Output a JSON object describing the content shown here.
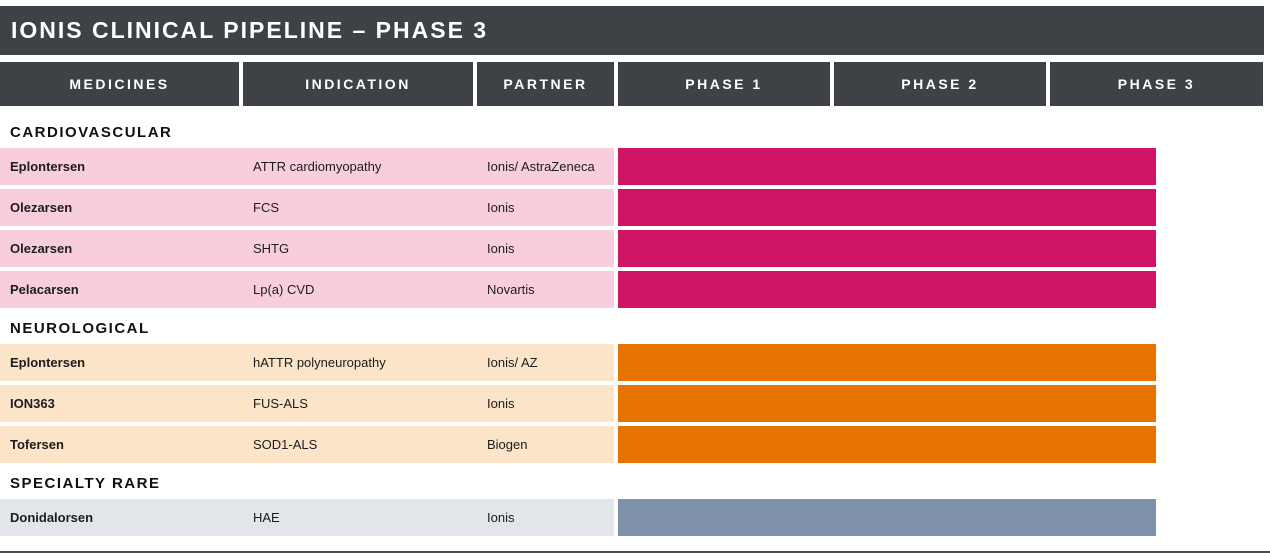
{
  "title": "IONIS CLINICAL PIPELINE – PHASE 3",
  "columns": [
    {
      "label": "MEDICINES"
    },
    {
      "label": "INDICATION"
    },
    {
      "label": "PARTNER"
    },
    {
      "label": "PHASE 1"
    },
    {
      "label": "PHASE 2"
    },
    {
      "label": "PHASE 3"
    }
  ],
  "colors": {
    "header_charcoal": "#3e4145",
    "cardio_row_bg": "#f8cede",
    "cardio_bar": "#ce1465",
    "neuro_row_bg": "#fce4c8",
    "neuro_bar": "#e67200",
    "rare_row_bg": "#e2e5e9",
    "rare_bar": "#7e91ab"
  },
  "sections": [
    {
      "name": "CARDIOVASCULAR",
      "row_bg": "#f8cede",
      "bar_color": "#ce1465",
      "rows": [
        {
          "medicine": "Eplontersen",
          "indication": "ATTR cardiomyopathy",
          "partner": "Ionis/ AstraZeneca"
        },
        {
          "medicine": "Olezarsen",
          "indication": "FCS",
          "partner": "Ionis"
        },
        {
          "medicine": "Olezarsen",
          "indication": "SHTG",
          "partner": "Ionis"
        },
        {
          "medicine": "Pelacarsen",
          "indication": "Lp(a) CVD",
          "partner": "Novartis"
        }
      ]
    },
    {
      "name": "NEUROLOGICAL",
      "row_bg": "#fce4c8",
      "bar_color": "#e67200",
      "rows": [
        {
          "medicine": "Eplontersen",
          "indication": "hATTR polyneuropathy",
          "partner": "Ionis/ AZ"
        },
        {
          "medicine": "ION363",
          "indication": "FUS-ALS",
          "partner": "Ionis"
        },
        {
          "medicine": "Tofersen",
          "indication": "SOD1-ALS",
          "partner": "Biogen"
        }
      ]
    },
    {
      "name": "SPECIALTY RARE",
      "row_bg": "#e2e5e9",
      "bar_color": "#7e91ab",
      "rows": [
        {
          "medicine": "Donidalorsen",
          "indication": "HAE",
          "partner": "Ionis"
        }
      ]
    }
  ],
  "chart_data": {
    "type": "bar",
    "orientation": "horizontal",
    "title": "IONIS CLINICAL PIPELINE – PHASE 3",
    "phase_axis": [
      "PHASE 1",
      "PHASE 2",
      "PHASE 3"
    ],
    "xlim": [
      0,
      3
    ],
    "grid": false,
    "legend": "none",
    "bars": [
      {
        "group": "CARDIOVASCULAR",
        "label": "Eplontersen",
        "indication": "ATTR cardiomyopathy",
        "partner": "Ionis/ AstraZeneca",
        "start": 0,
        "end": 2.5,
        "color": "#ce1465"
      },
      {
        "group": "CARDIOVASCULAR",
        "label": "Olezarsen",
        "indication": "FCS",
        "partner": "Ionis",
        "start": 0,
        "end": 2.5,
        "color": "#ce1465"
      },
      {
        "group": "CARDIOVASCULAR",
        "label": "Olezarsen",
        "indication": "SHTG",
        "partner": "Ionis",
        "start": 0,
        "end": 2.5,
        "color": "#ce1465"
      },
      {
        "group": "CARDIOVASCULAR",
        "label": "Pelacarsen",
        "indication": "Lp(a) CVD",
        "partner": "Novartis",
        "start": 0,
        "end": 2.5,
        "color": "#ce1465"
      },
      {
        "group": "NEUROLOGICAL",
        "label": "Eplontersen",
        "indication": "hATTR polyneuropathy",
        "partner": "Ionis/ AZ",
        "start": 0,
        "end": 2.5,
        "color": "#e67200"
      },
      {
        "group": "NEUROLOGICAL",
        "label": "ION363",
        "indication": "FUS-ALS",
        "partner": "Ionis",
        "start": 0,
        "end": 2.5,
        "color": "#e67200"
      },
      {
        "group": "NEUROLOGICAL",
        "label": "Tofersen",
        "indication": "SOD1-ALS",
        "partner": "Biogen",
        "start": 0,
        "end": 2.5,
        "color": "#e67200"
      },
      {
        "group": "SPECIALTY RARE",
        "label": "Donidalorsen",
        "indication": "HAE",
        "partner": "Ionis",
        "start": 0,
        "end": 2.5,
        "color": "#7e91ab"
      }
    ]
  }
}
